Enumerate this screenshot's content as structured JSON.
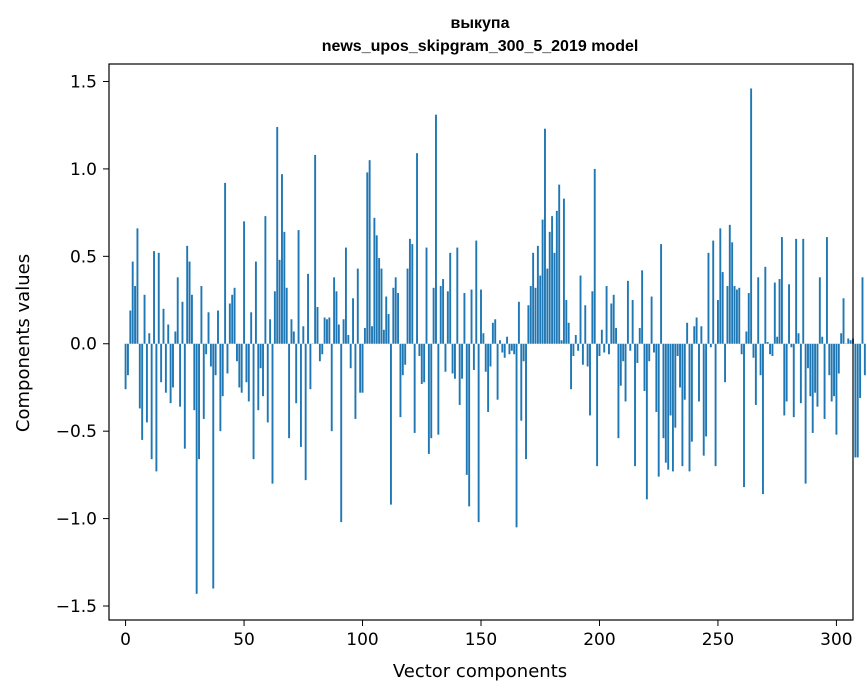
{
  "chart_data": {
    "type": "bar",
    "title": "выкупа",
    "subtitle": "news_upos_skipgram_300_5_2019 model",
    "xlabel": "Vector components",
    "ylabel": "Components values",
    "xlim": [
      -7,
      307
    ],
    "ylim": [
      -1.58,
      1.6
    ],
    "x_ticks": [
      0,
      50,
      100,
      150,
      200,
      250,
      300
    ],
    "y_ticks": [
      -1.5,
      -1.0,
      -0.5,
      0.0,
      0.5,
      1.0,
      1.5
    ],
    "x_tick_labels": [
      "0",
      "50",
      "100",
      "150",
      "200",
      "250",
      "300"
    ],
    "y_tick_labels": [
      "−1.5",
      "−1.0",
      "−0.5",
      "0.0",
      "0.5",
      "1.0",
      "1.5"
    ],
    "bar_color": "#1f77b4",
    "grid": false,
    "values": [
      -0.26,
      -0.18,
      0.19,
      0.47,
      0.33,
      0.66,
      -0.37,
      -0.55,
      0.28,
      -0.45,
      0.06,
      -0.66,
      0.53,
      -0.73,
      0.52,
      -0.22,
      0.2,
      -0.28,
      0.11,
      -0.34,
      -0.25,
      0.07,
      0.38,
      -0.36,
      0.24,
      -0.6,
      0.56,
      0.47,
      0.28,
      -0.38,
      -1.43,
      -0.66,
      0.33,
      -0.43,
      -0.06,
      0.18,
      -0.13,
      -1.4,
      -0.18,
      0.19,
      -0.5,
      -0.3,
      0.92,
      -0.17,
      0.23,
      0.28,
      0.32,
      -0.1,
      -0.25,
      -0.28,
      0.7,
      -0.22,
      -0.33,
      0.18,
      -0.66,
      0.47,
      -0.38,
      -0.14,
      -0.3,
      0.73,
      -0.45,
      0.14,
      -0.8,
      0.3,
      1.24,
      0.48,
      0.97,
      0.64,
      0.32,
      -0.54,
      0.14,
      0.07,
      -0.34,
      0.65,
      -0.59,
      0.1,
      -0.78,
      0.4,
      -0.26,
      0.0,
      1.08,
      0.21,
      -0.1,
      -0.06,
      0.15,
      0.14,
      0.15,
      -0.5,
      0.38,
      0.3,
      0.11,
      -1.02,
      0.14,
      0.55,
      0.05,
      -0.14,
      0.26,
      -0.43,
      0.43,
      -0.28,
      -0.28,
      0.09,
      0.98,
      1.05,
      0.1,
      0.72,
      0.62,
      0.49,
      0.43,
      0.08,
      0.27,
      0.17,
      -0.92,
      0.32,
      0.38,
      0.29,
      -0.42,
      -0.18,
      -0.12,
      0.43,
      0.6,
      0.57,
      -0.51,
      1.09,
      -0.07,
      -0.23,
      -0.22,
      0.55,
      -0.63,
      -0.54,
      0.32,
      1.31,
      -0.52,
      0.33,
      0.37,
      -0.16,
      0.3,
      0.52,
      -0.17,
      -0.2,
      0.55,
      -0.35,
      -0.2,
      0.29,
      -0.75,
      -0.93,
      0.31,
      -0.15,
      0.59,
      -1.02,
      0.31,
      0.06,
      -0.16,
      -0.39,
      -0.13,
      0.12,
      0.14,
      -0.32,
      0.02,
      -0.05,
      -0.08,
      0.04,
      -0.06,
      -0.04,
      -0.06,
      -1.05,
      0.24,
      -0.44,
      -0.1,
      -0.66,
      0.22,
      0.33,
      0.52,
      0.32,
      0.56,
      0.39,
      0.71,
      1.23,
      0.43,
      0.64,
      0.73,
      0.52,
      0.76,
      0.91,
      0.02,
      0.83,
      0.25,
      0.12,
      -0.26,
      -0.07,
      0.05,
      -0.04,
      0.39,
      -0.12,
      0.22,
      -0.13,
      -0.41,
      0.3,
      1.0,
      -0.7,
      -0.07,
      0.08,
      -0.05,
      0.33,
      -0.06,
      0.23,
      0.28,
      0.09,
      -0.54,
      -0.24,
      -0.1,
      -0.33,
      0.36,
      -0.04,
      0.25,
      -0.7,
      -0.11,
      0.09,
      0.42,
      -0.27,
      -0.89,
      -0.1,
      0.27,
      -0.05,
      -0.39,
      -0.76,
      0.57,
      -0.54,
      -0.68,
      -0.72,
      -0.41,
      -0.73,
      -0.48,
      -0.07,
      -0.25,
      -0.7,
      -0.32,
      0.12,
      -0.73,
      -0.56,
      0.1,
      0.15,
      -0.33,
      0.1,
      -0.64,
      -0.53,
      0.52,
      -0.02,
      0.59,
      -0.7,
      0.25,
      0.66,
      0.41,
      -0.22,
      0.33,
      0.68,
      0.58,
      0.33,
      0.31,
      0.32,
      -0.06,
      -0.82,
      0.07,
      0.29,
      1.46,
      -0.08,
      -0.35,
      0.38,
      -0.18,
      -0.86,
      0.44,
      0.01,
      -0.06,
      -0.07,
      0.35,
      0.04,
      0.37,
      0.61,
      -0.41,
      -0.33,
      0.34,
      -0.02,
      -0.42,
      0.6,
      0.06,
      -0.34,
      0.6,
      -0.8,
      -0.14,
      -0.3,
      -0.51,
      -0.28,
      -0.36,
      0.38,
      0.04,
      -0.43,
      0.61,
      -0.18,
      -0.33,
      -0.3,
      -0.52,
      -0.17,
      0.06,
      0.26,
      0.0,
      0.03,
      0.02,
      0.03,
      -0.65,
      -0.65,
      -0.31,
      0.38,
      -0.18
    ]
  }
}
